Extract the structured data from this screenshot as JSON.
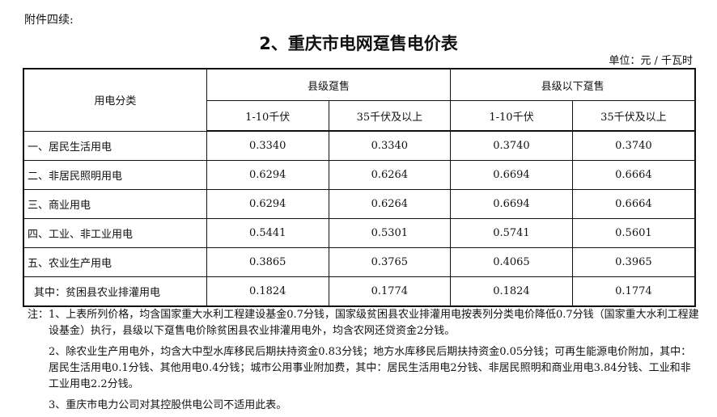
{
  "annex_label": "附件四续:",
  "title": "2、重庆市电网趸售电价表",
  "unit": "单位：元 / 千瓦时",
  "table": {
    "category_header": "用电分类",
    "groups": [
      "县级趸售",
      "县级以下趸售"
    ],
    "subheaders": [
      "1-10千伏",
      "35千伏及以上",
      "1-10千伏",
      "35千伏及以上"
    ],
    "rows": [
      {
        "label": "一、居民生活用电",
        "values": [
          "0.3340",
          "0.3340",
          "0.3740",
          "0.3740"
        ]
      },
      {
        "label": "二、非居民照明用电",
        "values": [
          "0.6294",
          "0.6264",
          "0.6694",
          "0.6664"
        ]
      },
      {
        "label": "三、商业用电",
        "values": [
          "0.6294",
          "0.6264",
          "0.6694",
          "0.6664"
        ]
      },
      {
        "label": "四、工业、非工业用电",
        "values": [
          "0.5441",
          "0.5301",
          "0.5741",
          "0.5601"
        ]
      },
      {
        "label": "五、农业生产用电",
        "values": [
          "0.3865",
          "0.3765",
          "0.4065",
          "0.3965"
        ]
      },
      {
        "label": "其中：贫困县农业排灌用电",
        "values": [
          "0.1824",
          "0.1774",
          "0.1824",
          "0.1774"
        ]
      }
    ]
  },
  "notes": [
    "注：1、上表所列价格，均含国家重大水利工程建设基金0.7分钱，国家级贫困县农业排灌用电按表列分类电价降低0.7分钱（国家重大水利工程建设基金）执行，县级以下趸售电价除贫困县农业排灌用电外，均含农网还贷资金2分钱。",
    "2、除农业生产用电外，均含大中型水库移民后期扶持资金0.83分钱；地方水库移民后期扶持资金0.05分钱；可再生能源电价附加，其中：居民生活用电0.1分钱、其他用电0.4分钱；城市公用事业附加费，其中：居民生活用电2分钱、非居民照明和商业用电3.84分钱、工业和非工业用电2.2分钱。",
    "3、重庆市电力公司对其控股供电公司不适用此表。"
  ]
}
